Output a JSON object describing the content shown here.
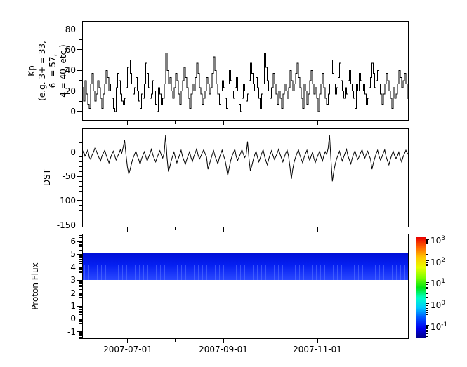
{
  "figure": {
    "bg": "#ffffff",
    "fg": "#000000"
  },
  "x_axis": {
    "range_start": "2007-06-02",
    "range_end": "2007-12-30",
    "tick_dates_major": [
      "2007-07-01",
      "2007-09-01",
      "2007-11-01"
    ],
    "tick_dates_minor": [
      "2007-08-01",
      "2007-10-01",
      "2007-12-01"
    ],
    "major_fracs": [
      0.1374,
      0.4313,
      0.7204
    ],
    "minor_fracs": [
      0.2844,
      0.5735,
      0.8626
    ]
  },
  "chart_data": [
    {
      "type": "line",
      "id": "kp",
      "ylabel_lines": [
        "Kp",
        "(e.g. 3+ = 33,",
        "6- = 57,",
        "4 = 40, etc.)"
      ],
      "ylim": [
        -9,
        88
      ],
      "yticks": [
        0,
        20,
        40,
        60,
        80
      ],
      "yminors": [
        10,
        30,
        50,
        70
      ],
      "line_color": "#000000",
      "draw_style": "step",
      "values": [
        23,
        10,
        30,
        17,
        7,
        3,
        27,
        37,
        20,
        10,
        17,
        30,
        23,
        13,
        3,
        17,
        27,
        40,
        33,
        20,
        27,
        13,
        3,
        0,
        23,
        37,
        30,
        17,
        10,
        7,
        13,
        23,
        43,
        50,
        37,
        27,
        17,
        23,
        33,
        20,
        10,
        3,
        17,
        13,
        27,
        47,
        37,
        23,
        13,
        17,
        30,
        20,
        7,
        0,
        23,
        17,
        7,
        13,
        27,
        57,
        40,
        27,
        33,
        20,
        13,
        23,
        37,
        30,
        17,
        7,
        20,
        30,
        43,
        33,
        23,
        13,
        3,
        17,
        27,
        20,
        33,
        47,
        37,
        23,
        17,
        7,
        13,
        20,
        33,
        27,
        17,
        23,
        37,
        53,
        40,
        27,
        17,
        7,
        20,
        30,
        23,
        13,
        3,
        27,
        40,
        30,
        20,
        13,
        23,
        33,
        20,
        7,
        0,
        13,
        27,
        20,
        10,
        17,
        30,
        47,
        37,
        27,
        20,
        33,
        23,
        13,
        3,
        17,
        27,
        57,
        43,
        30,
        20,
        13,
        23,
        37,
        27,
        17,
        7,
        20,
        13,
        3,
        17,
        27,
        20,
        13,
        23,
        40,
        30,
        20,
        27,
        37,
        47,
        33,
        23,
        13,
        3,
        27,
        20,
        7,
        17,
        30,
        40,
        27,
        17,
        23,
        13,
        0,
        17,
        27,
        37,
        23,
        13,
        7,
        17,
        27,
        50,
        37,
        27,
        17,
        23,
        33,
        47,
        30,
        20,
        13,
        23,
        17,
        30,
        40,
        27,
        20,
        13,
        3,
        27,
        20,
        37,
        30,
        20,
        27,
        17,
        7,
        13,
        23,
        33,
        47,
        37,
        23,
        30,
        40,
        27,
        17,
        7,
        17,
        27,
        37,
        30,
        20,
        13,
        3,
        23,
        13,
        17,
        27,
        40,
        33,
        23,
        30,
        37,
        27,
        13,
        3
      ]
    },
    {
      "type": "line",
      "id": "dst",
      "ylabel": "DST",
      "ylim": [
        -155,
        49
      ],
      "yticks": [
        0,
        -50,
        -100,
        -150
      ],
      "yminor_step": 10,
      "line_color": "#000000",
      "draw_style": "line",
      "values": [
        -5,
        2,
        -8,
        -3,
        5,
        -10,
        -15,
        -6,
        0,
        8,
        3,
        -5,
        -12,
        -18,
        -8,
        -2,
        4,
        -6,
        -14,
        -22,
        -12,
        -4,
        2,
        -7,
        -16,
        -9,
        -3,
        5,
        -2,
        10,
        25,
        -5,
        -30,
        -45,
        -35,
        -22,
        -12,
        -5,
        2,
        -8,
        -15,
        -25,
        -14,
        -6,
        1,
        -9,
        -18,
        -10,
        -3,
        6,
        -5,
        -13,
        -20,
        -11,
        -4,
        3,
        -6,
        -12,
        -2,
        35,
        -10,
        -40,
        -30,
        -18,
        -8,
        0,
        -12,
        -22,
        -13,
        -5,
        4,
        -9,
        -17,
        -25,
        -15,
        -7,
        1,
        -11,
        -19,
        -9,
        -2,
        7,
        -6,
        -14,
        -8,
        -1,
        5,
        -3,
        -10,
        -35,
        -25,
        -15,
        -5,
        3,
        -8,
        -16,
        -24,
        -12,
        -4,
        4,
        -7,
        -15,
        -30,
        -48,
        -32,
        -18,
        -8,
        -1,
        6,
        -9,
        -17,
        -10,
        -3,
        5,
        -4,
        -11,
        -6,
        22,
        -12,
        -38,
        -28,
        -16,
        -6,
        2,
        -10,
        -20,
        -12,
        -3,
        5,
        -8,
        -18,
        -26,
        -14,
        -5,
        3,
        -7,
        -15,
        -9,
        -2,
        6,
        -4,
        -12,
        -20,
        -10,
        -2,
        4,
        -8,
        -30,
        -55,
        -35,
        -20,
        -10,
        -2,
        5,
        -6,
        -14,
        -22,
        -11,
        -3,
        4,
        -9,
        -17,
        -8,
        0,
        -13,
        -21,
        -12,
        -5,
        2,
        -10,
        -18,
        -7,
        1,
        -5,
        8,
        35,
        -15,
        -60,
        -40,
        -25,
        -14,
        -6,
        2,
        -9,
        -18,
        -10,
        -2,
        6,
        -7,
        -16,
        -24,
        -13,
        -4,
        3,
        -8,
        -15,
        -9,
        -1,
        5,
        -6,
        -12,
        -4,
        2,
        -7,
        -14,
        -35,
        -22,
        -12,
        -3,
        4,
        -8,
        -16,
        -10,
        -2,
        5,
        -9,
        -18,
        -26,
        -15,
        -6,
        2,
        -7,
        -13,
        -8,
        0,
        -12,
        -20,
        -10,
        -3,
        4,
        -2,
        -6
      ]
    },
    {
      "type": "heatmap",
      "id": "proton",
      "ylabel": "Proton Flux",
      "ylim": [
        -1.55,
        6.6
      ],
      "yticks": [
        6,
        5,
        4,
        3,
        2,
        1,
        0,
        -1
      ],
      "y_scale": "log-decades",
      "band": {
        "y_top": 5.07,
        "y_bottom": 3.0,
        "color_top": "#000fd8",
        "color_mid": "#0520f2",
        "color_low": "#2a48ff",
        "streak_color": "#5b76ff"
      },
      "colorbar": {
        "scale": "log",
        "label_base": "10",
        "tick_exponents": [
          3,
          2,
          1,
          0,
          -1
        ],
        "log_range": [
          -1.6,
          3.1
        ],
        "gradient_bottom_to_top": [
          "#000084",
          "#0000f0",
          "#0050ff",
          "#00c8ff",
          "#00ffc8",
          "#00e614",
          "#80ff00",
          "#e6ff00",
          "#ffc800",
          "#ff6400",
          "#e80000"
        ]
      }
    }
  ]
}
